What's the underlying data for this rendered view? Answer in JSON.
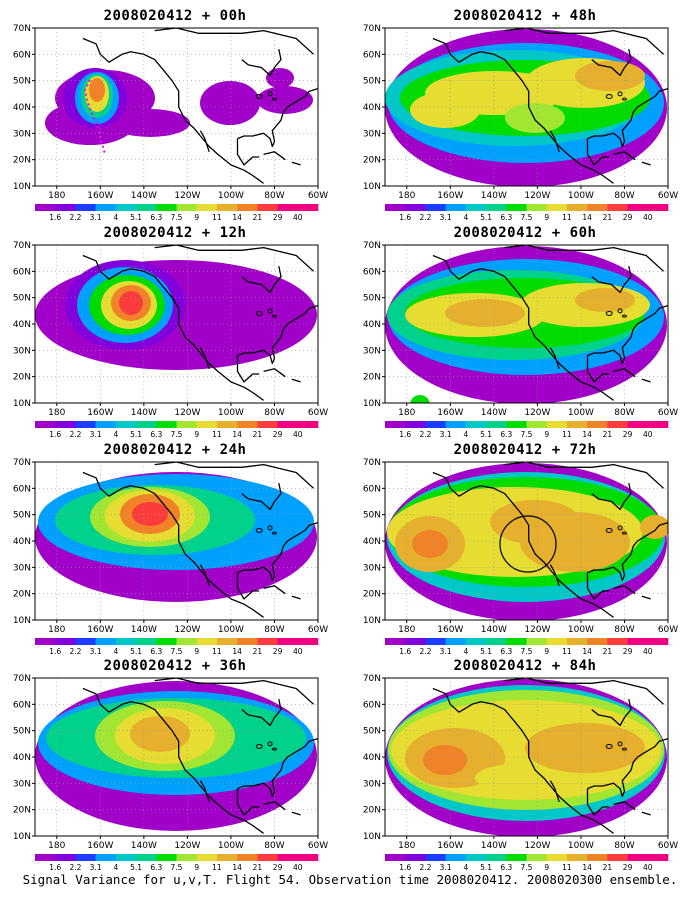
{
  "figure": {
    "caption": "Signal Variance for u,v,T. Flight 54. Observation time 2008020412. 2008020300 ensemble."
  },
  "colorbar": {
    "levels": [
      "1.6",
      "2.2",
      "3.1",
      "4",
      "5.1",
      "6.3",
      "7.5",
      "9",
      "11",
      "14",
      "21",
      "29",
      "40"
    ],
    "colors": [
      "#a000c8",
      "#8200dc",
      "#1e3cff",
      "#00a0ff",
      "#00c8c8",
      "#00d28c",
      "#00dc00",
      "#a0e632",
      "#e6dc32",
      "#e6af2d",
      "#f08228",
      "#fa3c3c",
      "#f00082"
    ]
  },
  "axes": {
    "lat_ticks": [
      "10N",
      "20N",
      "30N",
      "40N",
      "50N",
      "60N",
      "70N"
    ],
    "lon_ticks": [
      "180",
      "160W",
      "140W",
      "120W",
      "100W",
      "80W",
      "60W"
    ]
  },
  "panels": [
    {
      "title": "2008020412 + 00h"
    },
    {
      "title": "2008020412 + 48h"
    },
    {
      "title": "2008020412 + 12h"
    },
    {
      "title": "2008020412 + 60h"
    },
    {
      "title": "2008020412 + 24h"
    },
    {
      "title": "2008020412 + 72h"
    },
    {
      "title": "2008020412 + 36h"
    },
    {
      "title": "2008020412 + 84h"
    }
  ],
  "map_features": {
    "flight_track_color": "#ff00ff",
    "coastline_color": "#000000",
    "grid_color": "#999999"
  }
}
